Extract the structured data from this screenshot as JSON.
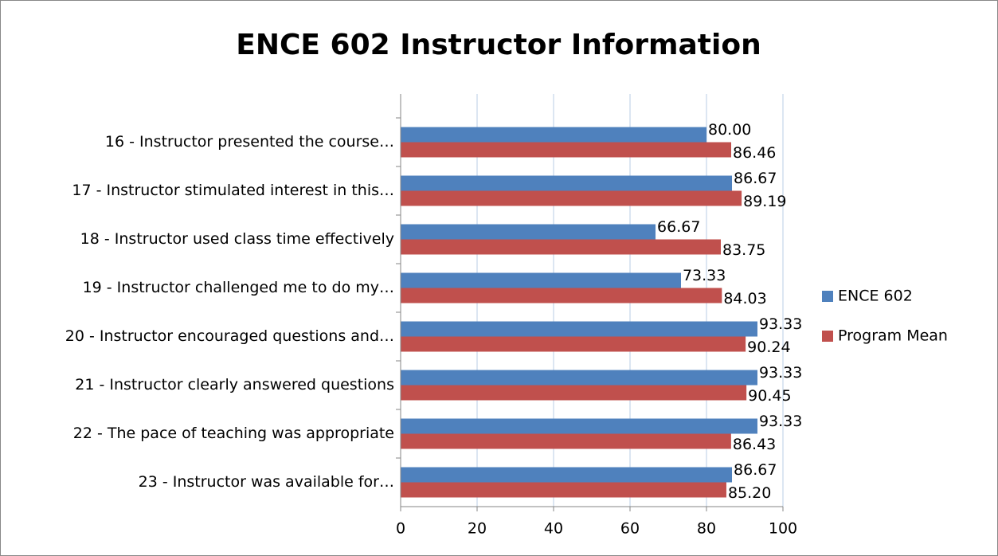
{
  "chart_data": {
    "type": "hbar",
    "title": "ENCE 602 Instructor Information",
    "categories": [
      "16  - Instructor presented the course…",
      "17 - Instructor stimulated interest in this…",
      "18 - Instructor used class time effectively",
      "19 - Instructor challenged me to do my…",
      "20 - Instructor encouraged questions and…",
      "21 - Instructor clearly answered questions",
      "22 - The pace of teaching was appropriate",
      "23 - Instructor was available for…"
    ],
    "series": [
      {
        "name": "ENCE 602",
        "color": "#4f81bd",
        "values": [
          80,
          86.67,
          66.67,
          73.33,
          93.33,
          93.33,
          93.33,
          86.67
        ],
        "value_labels": [
          "80.00",
          "86.67",
          "66.67",
          "73.33",
          "93.33",
          "93.33",
          "93.33",
          "86.67"
        ]
      },
      {
        "name": "Program Mean",
        "color": "#c0504d",
        "values": [
          86.46,
          89.19,
          83.75,
          84.03,
          90.24,
          90.45,
          86.43,
          85.2
        ],
        "value_labels": [
          "86.46",
          "89.19",
          "83.75",
          "84.03",
          "90.24",
          "90.45",
          "86.43",
          "85.20"
        ]
      }
    ],
    "xlim": [
      0,
      100
    ],
    "xticks": [
      0,
      20,
      40,
      60,
      80,
      100
    ],
    "grid": true,
    "legend": "right"
  }
}
